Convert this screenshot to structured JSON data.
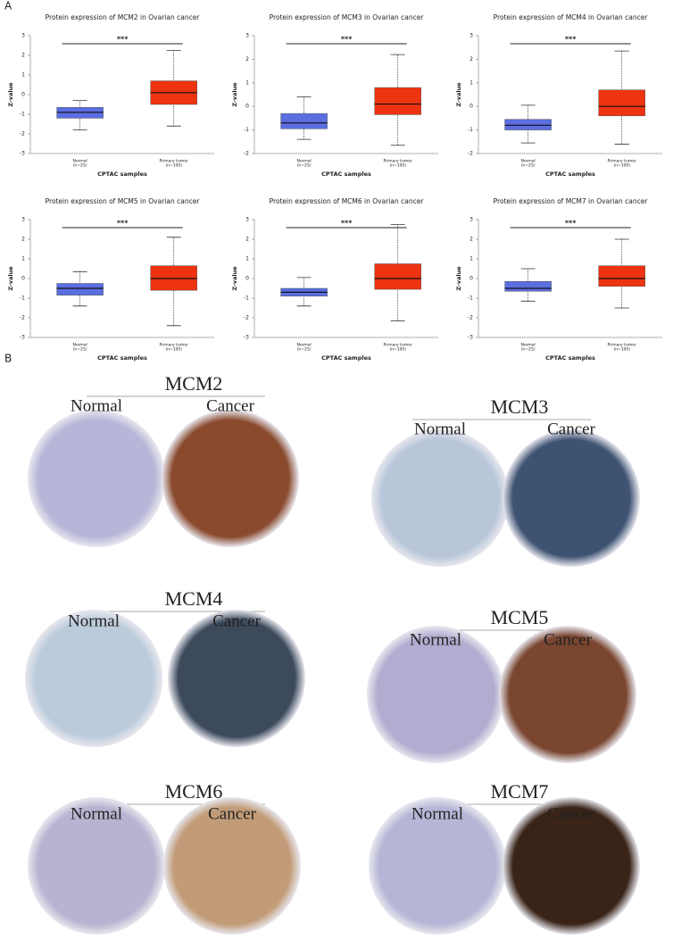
{
  "panel_a_label": "A",
  "chart_data": [
    {
      "type": "box",
      "title": "Protein expression of MCM2 in Ovarian cancer",
      "x_label": "CPTAC samples",
      "y_label": "Z-value",
      "ylim": [
        -3,
        3
      ],
      "yticks": [
        -3,
        -2,
        -1,
        0,
        1,
        2,
        3
      ],
      "significance": "***",
      "groups": [
        {
          "name": "Normal",
          "note": "(n=25)",
          "color": "#5b6ee1",
          "min": -1.8,
          "q1": -1.2,
          "median": -0.9,
          "q3": -0.65,
          "max": -0.3
        },
        {
          "name": "Primary tumor",
          "note": "(n=100)",
          "color": "#ee3311",
          "min": -1.6,
          "q1": -0.5,
          "median": 0.1,
          "q3": 0.7,
          "max": 2.25
        }
      ]
    },
    {
      "type": "box",
      "title": "Protein expression of MCM3 in Ovarian cancer",
      "x_label": "CPTAC samples",
      "y_label": "Z-value",
      "ylim": [
        -2,
        3
      ],
      "yticks": [
        -2,
        -1,
        0,
        1,
        2,
        3
      ],
      "significance": "***",
      "groups": [
        {
          "name": "Normal",
          "note": "(n=25)",
          "color": "#5b6ee1",
          "min": -1.4,
          "q1": -0.95,
          "median": -0.7,
          "q3": -0.3,
          "max": 0.4
        },
        {
          "name": "Primary tumor",
          "note": "(n=100)",
          "color": "#ee3311",
          "min": -1.65,
          "q1": -0.35,
          "median": 0.1,
          "q3": 0.8,
          "max": 2.2
        }
      ]
    },
    {
      "type": "box",
      "title": "Protein expression of MCM4 in Ovarian cancer",
      "x_label": "CPTAC samples",
      "y_label": "Z-value",
      "ylim": [
        -2,
        3
      ],
      "yticks": [
        -2,
        -1,
        0,
        1,
        2,
        3
      ],
      "significance": "***",
      "groups": [
        {
          "name": "Normal",
          "note": "(n=25)",
          "color": "#5b6ee1",
          "min": -1.55,
          "q1": -1.0,
          "median": -0.8,
          "q3": -0.55,
          "max": 0.05
        },
        {
          "name": "Primary tumor",
          "note": "(n=100)",
          "color": "#ee3311",
          "min": -1.6,
          "q1": -0.4,
          "median": 0.0,
          "q3": 0.7,
          "max": 2.35
        }
      ]
    },
    {
      "type": "box",
      "title": "Protein expression of MCM5 in Ovarian cancer",
      "x_label": "CPTAC samples",
      "y_label": "Z-value",
      "ylim": [
        -3,
        3
      ],
      "yticks": [
        -3,
        -2,
        -1,
        0,
        1,
        2,
        3
      ],
      "significance": "***",
      "groups": [
        {
          "name": "Normal",
          "note": "(n=25)",
          "color": "#5b6ee1",
          "min": -1.4,
          "q1": -0.85,
          "median": -0.5,
          "q3": -0.25,
          "max": 0.35
        },
        {
          "name": "Primary tumor",
          "note": "(n=100)",
          "color": "#ee3311",
          "min": -2.4,
          "q1": -0.6,
          "median": 0.0,
          "q3": 0.65,
          "max": 2.1
        }
      ]
    },
    {
      "type": "box",
      "title": "Protein expression of MCM6 in Ovarian cancer",
      "x_label": "CPTAC samples",
      "y_label": "Z-value",
      "ylim": [
        -3,
        3
      ],
      "yticks": [
        -3,
        -2,
        -1,
        0,
        1,
        2,
        3
      ],
      "significance": "***",
      "groups": [
        {
          "name": "Normal",
          "note": "(n=25)",
          "color": "#5b6ee1",
          "min": -1.4,
          "q1": -0.9,
          "median": -0.7,
          "q3": -0.5,
          "max": 0.05
        },
        {
          "name": "Primary tumor",
          "note": "(n=100)",
          "color": "#ee3311",
          "min": -2.15,
          "q1": -0.55,
          "median": 0.0,
          "q3": 0.75,
          "max": 2.75
        }
      ]
    },
    {
      "type": "box",
      "title": "Protein expression of MCM7 in Ovarian cancer",
      "x_label": "CPTAC samples",
      "y_label": "Z-value",
      "ylim": [
        -3,
        3
      ],
      "yticks": [
        -3,
        -2,
        -1,
        0,
        1,
        2,
        3
      ],
      "significance": "***",
      "groups": [
        {
          "name": "Normal",
          "note": "(n=25)",
          "color": "#5b6ee1",
          "min": -1.15,
          "q1": -0.65,
          "median": -0.5,
          "q3": -0.15,
          "max": 0.5
        },
        {
          "name": "Primary tumor",
          "note": "(n=100)",
          "color": "#ee3311",
          "min": -1.5,
          "q1": -0.4,
          "median": 0.0,
          "q3": 0.65,
          "max": 2.0
        }
      ]
    }
  ],
  "panel_b": {
    "label": "B",
    "panels": [
      {
        "title": "MCM2",
        "left": "Normal",
        "right": "Cancer"
      },
      {
        "title": "MCM3",
        "left": "Normal",
        "right": "Cancer"
      },
      {
        "title": "MCM4",
        "left": "Normal",
        "right": "Cancer"
      },
      {
        "title": "MCM5",
        "left": "Normal",
        "right": "Cancer"
      },
      {
        "title": "MCM6",
        "left": "Normal",
        "right": "Cancer"
      },
      {
        "title": "MCM7",
        "left": "Normal",
        "right": "Cancer"
      }
    ]
  }
}
